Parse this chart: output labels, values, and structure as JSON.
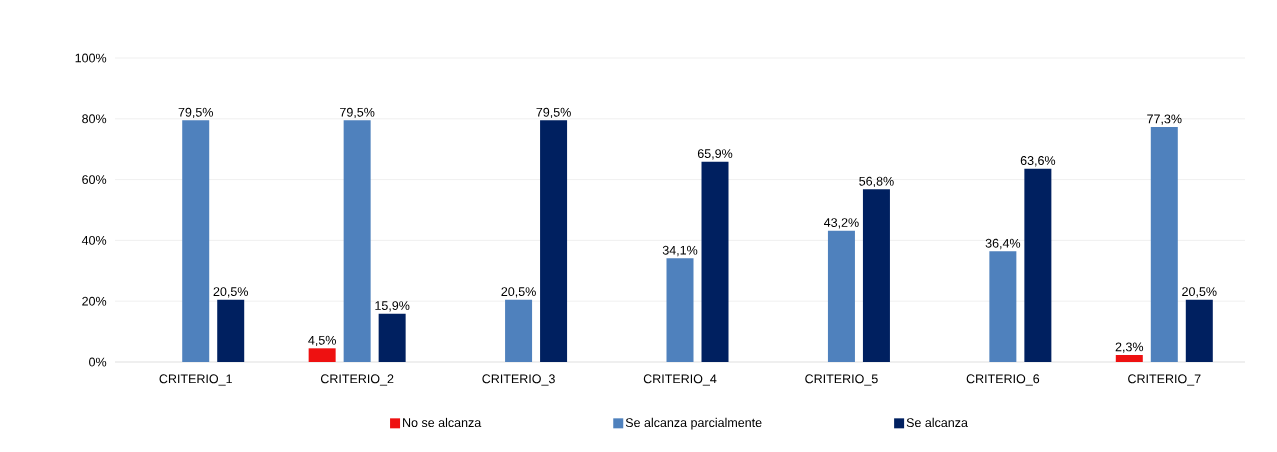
{
  "chart_data": {
    "type": "bar",
    "categories": [
      "CRITERIO_1",
      "CRITERIO_2",
      "CRITERIO_3",
      "CRITERIO_4",
      "CRITERIO_5",
      "CRITERIO_6",
      "CRITERIO_7"
    ],
    "series": [
      {
        "name": "No se alcanza",
        "color": "#ee1111",
        "values": [
          0,
          4.5,
          0,
          0,
          0,
          0,
          2.3
        ],
        "value_labels": [
          null,
          "4,5%",
          null,
          null,
          null,
          null,
          "2,3%"
        ]
      },
      {
        "name": "Se alcanza parcialmente",
        "color": "#4f81bd",
        "values": [
          79.5,
          79.5,
          20.5,
          34.1,
          43.2,
          36.4,
          77.3
        ],
        "value_labels": [
          "79,5%",
          "79,5%",
          "20,5%",
          "34,1%",
          "43,2%",
          "36,4%",
          "77,3%"
        ]
      },
      {
        "name": "Se alcanza",
        "color": "#002060",
        "values": [
          20.5,
          15.9,
          79.5,
          65.9,
          56.8,
          63.6,
          20.5
        ],
        "value_labels": [
          "20,5%",
          "15,9%",
          "79,5%",
          "65,9%",
          "56,8%",
          "63,6%",
          "20,5%"
        ]
      }
    ],
    "ylim": [
      0,
      100
    ],
    "yticks": [
      {
        "value": 0,
        "label": "0%"
      },
      {
        "value": 20,
        "label": "20%"
      },
      {
        "value": 40,
        "label": "40%"
      },
      {
        "value": 60,
        "label": "60%"
      },
      {
        "value": 80,
        "label": "80%"
      },
      {
        "value": 100,
        "label": "100%"
      }
    ],
    "grid": "y",
    "legend": "bottom"
  }
}
